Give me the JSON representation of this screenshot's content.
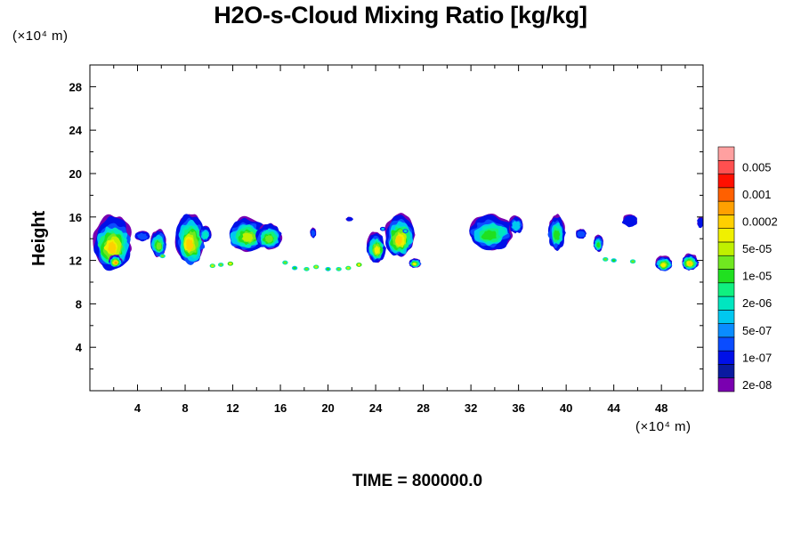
{
  "chart_data": {
    "type": "heatmap",
    "title": "H2O-s-Cloud Mixing Ratio [kg/kg]",
    "ylabel": "Height",
    "xlabel": "",
    "x_unit": "(×10⁴ m)",
    "y_unit": "(×10⁴ m)",
    "footer": "TIME = 800000.0",
    "xlim": [
      0,
      51.5
    ],
    "ylim": [
      0,
      30
    ],
    "x_ticks": [
      4,
      8,
      12,
      16,
      20,
      24,
      28,
      32,
      36,
      40,
      44,
      48
    ],
    "y_ticks": [
      4,
      8,
      12,
      16,
      20,
      24,
      28
    ],
    "colorbar": {
      "levels": [
        {
          "color": "#7a00b0",
          "label": "2e-08"
        },
        {
          "color": "#0a1aa0",
          "label": ""
        },
        {
          "color": "#0010e8",
          "label": "1e-07"
        },
        {
          "color": "#0a4cff",
          "label": ""
        },
        {
          "color": "#0a8cff",
          "label": "5e-07"
        },
        {
          "color": "#00c8f0",
          "label": ""
        },
        {
          "color": "#00e6c0",
          "label": "2e-06"
        },
        {
          "color": "#10f080",
          "label": ""
        },
        {
          "color": "#20e020",
          "label": "1e-05"
        },
        {
          "color": "#70e820",
          "label": ""
        },
        {
          "color": "#c0f000",
          "label": "5e-05"
        },
        {
          "color": "#f0f000",
          "label": ""
        },
        {
          "color": "#ffd000",
          "label": "0.0002"
        },
        {
          "color": "#ffa000",
          "label": ""
        },
        {
          "color": "#ff6000",
          "label": "0.001"
        },
        {
          "color": "#ff1000",
          "label": ""
        },
        {
          "color": "#ff5050",
          "label": "0.005"
        },
        {
          "color": "#ffa0a0",
          "label": ""
        }
      ]
    },
    "clouds": [
      {
        "x": 0.3,
        "top": 16.1,
        "bottom": 11.2,
        "width": 3.2,
        "peak": 11
      },
      {
        "x": 3.8,
        "top": 14.7,
        "bottom": 13.8,
        "width": 1.2,
        "peak": 3
      },
      {
        "x": 5.1,
        "top": 14.8,
        "bottom": 12.3,
        "width": 1.3,
        "peak": 8
      },
      {
        "x": 7.2,
        "top": 16.4,
        "bottom": 11.5,
        "width": 2.4,
        "peak": 11
      },
      {
        "x": 9.2,
        "top": 15.2,
        "bottom": 13.7,
        "width": 1.0,
        "peak": 5
      },
      {
        "x": 11.7,
        "top": 16.0,
        "bottom": 12.8,
        "width": 3.0,
        "peak": 9
      },
      {
        "x": 14.0,
        "top": 15.4,
        "bottom": 13.0,
        "width": 2.1,
        "peak": 8
      },
      {
        "x": 18.5,
        "top": 15.0,
        "bottom": 14.1,
        "width": 0.5,
        "peak": 3
      },
      {
        "x": 21.5,
        "top": 16.0,
        "bottom": 15.6,
        "width": 0.6,
        "peak": 1
      },
      {
        "x": 23.3,
        "top": 14.6,
        "bottom": 11.8,
        "width": 1.5,
        "peak": 10
      },
      {
        "x": 24.8,
        "top": 16.2,
        "bottom": 12.3,
        "width": 2.4,
        "peak": 11
      },
      {
        "x": 31.9,
        "top": 16.2,
        "bottom": 13.0,
        "width": 3.6,
        "peak": 7
      },
      {
        "x": 35.2,
        "top": 16.1,
        "bottom": 14.5,
        "width": 1.2,
        "peak": 4
      },
      {
        "x": 38.5,
        "top": 16.2,
        "bottom": 13.0,
        "width": 1.4,
        "peak": 7
      },
      {
        "x": 40.8,
        "top": 14.9,
        "bottom": 14.0,
        "width": 0.9,
        "peak": 3
      },
      {
        "x": 42.3,
        "top": 14.3,
        "bottom": 12.8,
        "width": 0.8,
        "peak": 7
      },
      {
        "x": 44.7,
        "top": 16.2,
        "bottom": 15.1,
        "width": 1.3,
        "peak": 2
      },
      {
        "x": 51.0,
        "top": 16.0,
        "bottom": 15.0,
        "width": 0.6,
        "peak": 2
      },
      {
        "x": 47.5,
        "top": 12.4,
        "bottom": 11.0,
        "width": 1.4,
        "peak": 10
      },
      {
        "x": 49.7,
        "top": 12.6,
        "bottom": 11.1,
        "width": 1.4,
        "peak": 11
      },
      {
        "x": 26.8,
        "top": 12.2,
        "bottom": 11.3,
        "width": 1.0,
        "peak": 10
      },
      {
        "x": 1.6,
        "top": 12.5,
        "bottom": 11.3,
        "width": 1.1,
        "peak": 12
      }
    ],
    "speckles": [
      {
        "x": 10.3,
        "y": 11.5,
        "c": 10
      },
      {
        "x": 11.0,
        "y": 11.6,
        "c": 9
      },
      {
        "x": 11.8,
        "y": 11.7,
        "c": 11
      },
      {
        "x": 16.4,
        "y": 11.8,
        "c": 9
      },
      {
        "x": 17.2,
        "y": 11.3,
        "c": 8
      },
      {
        "x": 18.2,
        "y": 11.2,
        "c": 9
      },
      {
        "x": 19.0,
        "y": 11.4,
        "c": 10
      },
      {
        "x": 20.0,
        "y": 11.2,
        "c": 8
      },
      {
        "x": 20.9,
        "y": 11.2,
        "c": 9
      },
      {
        "x": 21.7,
        "y": 11.3,
        "c": 10
      },
      {
        "x": 22.6,
        "y": 11.6,
        "c": 11
      },
      {
        "x": 6.1,
        "y": 12.4,
        "c": 9
      },
      {
        "x": 43.3,
        "y": 12.1,
        "c": 9
      },
      {
        "x": 44.0,
        "y": 12.0,
        "c": 8
      },
      {
        "x": 45.6,
        "y": 11.9,
        "c": 9
      },
      {
        "x": 26.5,
        "y": 14.7,
        "c": 6
      },
      {
        "x": 24.6,
        "y": 14.9,
        "c": 5
      }
    ]
  }
}
